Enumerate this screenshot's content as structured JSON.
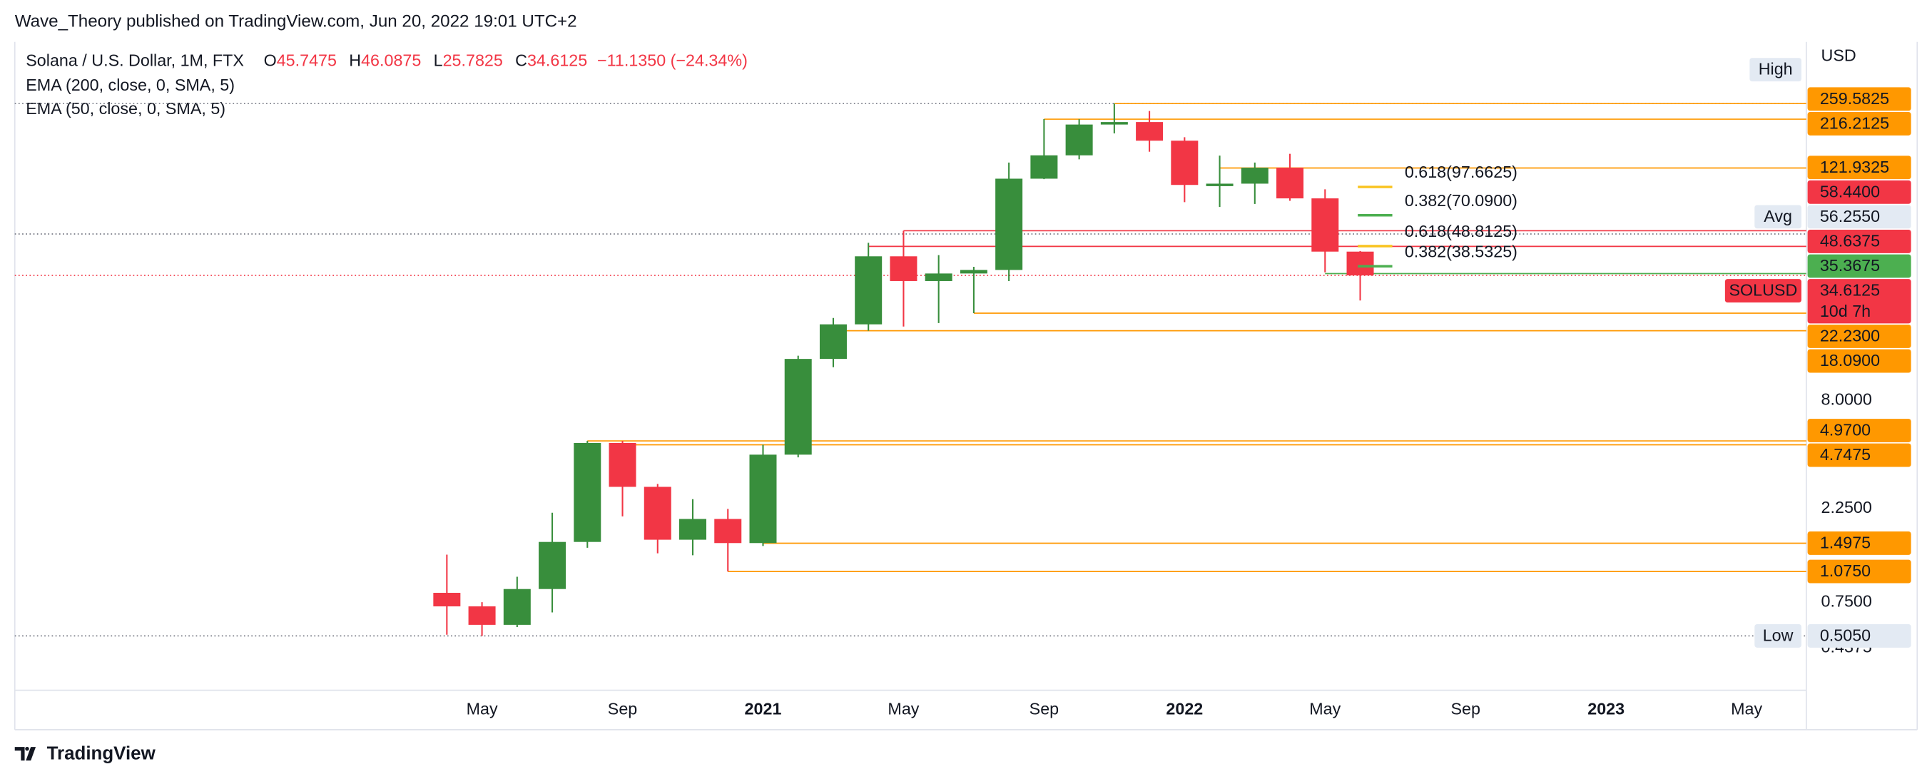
{
  "header": {
    "publisher": "Wave_Theory published on TradingView.com, Jun 20, 2022 19:01 UTC+2"
  },
  "footer": {
    "brand": "TradingView"
  },
  "chart_data": {
    "type": "candlestick",
    "title": "Solana / U.S. Dollar, 1M, FTX",
    "ohlc_keys": [
      "O",
      "H",
      "L",
      "C"
    ],
    "change": "−11.1350 (−24.34%)",
    "indicators": [
      "EMA (200, close, 0, SMA, 5)",
      "EMA (50, close, 0, SMA, 5)"
    ],
    "axis_unit": "USD",
    "log_scale": true,
    "up_color": "#388e3c",
    "down_color": "#f23645",
    "open": [
      0.837,
      0.714,
      0.575,
      0.875,
      1.52,
      4.85,
      2.9,
      1.56,
      1.99,
      1.5,
      4.23,
      13.0,
      19.5,
      43.3,
      32.4,
      35.4,
      36.9,
      107.6,
      141.5,
      203,
      209,
      168,
      98.6,
      101.5,
      122.4,
      85.4,
      45.7475
    ],
    "high": [
      1.31,
      0.75,
      1.01,
      2.14,
      4.97,
      4.97,
      3.0,
      2.51,
      2.24,
      4.7475,
      13.5,
      21.0,
      50.7,
      58.44,
      43.9,
      38.3,
      130,
      216.2125,
      216,
      259.5825,
      238,
      175,
      141,
      130,
      144,
      95,
      46.0875
    ],
    "low": [
      0.512,
      0.505,
      0.56,
      0.665,
      1.42,
      2.05,
      1.33,
      1.3,
      1.075,
      1.45,
      4.1,
      11.8,
      18.09,
      19.0,
      19.8,
      22.23,
      32.4,
      107,
      135,
      183,
      147.6,
      81.7,
      77.2,
      80,
      83,
      35.9,
      25.7825
    ],
    "close": [
      0.714,
      0.575,
      0.875,
      1.52,
      4.85,
      2.9,
      1.56,
      1.99,
      1.5,
      4.23,
      13.0,
      19.5,
      43.3,
      32.4,
      35.4,
      36.9,
      107.6,
      141.5,
      203,
      209,
      168,
      100,
      101.5,
      122.4,
      85.4,
      45.7475,
      34.6125
    ],
    "xlim": [
      -12.3,
      38.7
    ],
    "xticks": [
      {
        "value": 1,
        "label": "May"
      },
      {
        "value": 5,
        "label": "Sep"
      },
      {
        "value": 9,
        "label": "2021"
      },
      {
        "value": 13,
        "label": "May"
      },
      {
        "value": 17,
        "label": "Sep"
      },
      {
        "value": 21,
        "label": "2022"
      },
      {
        "value": 25,
        "label": "May"
      },
      {
        "value": 29,
        "label": "Sep"
      },
      {
        "value": 33,
        "label": "2023"
      },
      {
        "value": 37,
        "label": "May"
      }
    ],
    "ylim": [
      0.267,
      535
    ],
    "yticks": [
      {
        "value": 0.4375,
        "label": "0.4375"
      },
      {
        "value": 0.75,
        "label": "0.7500"
      },
      {
        "value": 2.25,
        "label": "2.2500"
      },
      {
        "value": 8,
        "label": "8.0000"
      }
    ],
    "levels": [
      {
        "value": 259.5825,
        "start": 19,
        "color": "#ff9800",
        "text_color": "#131722"
      },
      {
        "value": 216.2125,
        "start": 17,
        "color": "#ff9800",
        "text_color": "#131722"
      },
      {
        "value": 121.9325,
        "start": 22,
        "color": "#ff9800",
        "text_color": "#131722"
      },
      {
        "value": 58.44,
        "label": "58.4400",
        "start": 13,
        "color": "#f23645",
        "text_color": "#ffffff"
      },
      {
        "value": 48.6375,
        "start": 12,
        "color": "#f23645",
        "text_color": "#ffffff"
      },
      {
        "value": 35.3675,
        "start": 25,
        "color": "#4caf50",
        "text_color": "#ffffff"
      },
      {
        "value": 22.23,
        "label": "22.2300",
        "start": 15,
        "color": "#ff9800",
        "text_color": "#131722"
      },
      {
        "value": 18.09,
        "label": "18.0900",
        "start": 11,
        "color": "#ff9800",
        "text_color": "#131722"
      },
      {
        "value": 4.97,
        "label": "4.9700",
        "start": 4,
        "color": "#ff9800",
        "text_color": "#131722"
      },
      {
        "value": 4.7475,
        "start": 5,
        "color": "#ff9800",
        "text_color": "#131722"
      },
      {
        "value": 1.4975,
        "start": 9,
        "color": "#ff9800",
        "text_color": "#131722"
      },
      {
        "value": 1.075,
        "label": "1.0750",
        "start": 8,
        "color": "#ff9800",
        "text_color": "#131722"
      }
    ],
    "markers": [
      {
        "name": "High"
      },
      {
        "name": "Avg",
        "value": 56.255,
        "label": "56.2550"
      },
      {
        "name": "Low",
        "value": 0.505,
        "label": "0.5050"
      }
    ],
    "last_price": {
      "name": "SOLUSD",
      "countdown": "10d 7h",
      "color": "#f23645"
    },
    "fibs": [
      {
        "label": "0.618(97.6625)",
        "value": 97.6625,
        "color": "#f9c31f"
      },
      {
        "label": "0.382(70.0900)",
        "value": 70.09,
        "color": "#4caf50"
      },
      {
        "label": "0.618(48.8125)",
        "value": 48.8125,
        "color": "#f9c31f"
      },
      {
        "label": "0.382(38.5325)",
        "value": 38.5325,
        "color": "#4caf50"
      }
    ]
  }
}
